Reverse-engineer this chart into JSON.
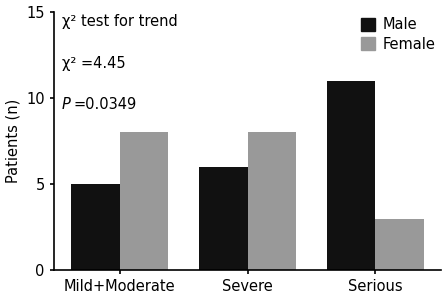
{
  "categories": [
    "Mild+Moderate",
    "Severe",
    "Serious"
  ],
  "male_values": [
    5,
    6,
    11
  ],
  "female_values": [
    8,
    8,
    3
  ],
  "male_color": "#111111",
  "female_color": "#999999",
  "ylabel": "Patients (n)",
  "ylim": [
    0,
    15
  ],
  "yticks": [
    0,
    5,
    10,
    15
  ],
  "annotation_line1": "χ² test for trend",
  "annotation_line2": "χ² =4.45",
  "annotation_line3_p": "P",
  "annotation_line3_rest": "=0.0349",
  "legend_male": "Male",
  "legend_female": "Female",
  "bar_width": 0.38,
  "font_size": 10.5,
  "figsize": [
    4.47,
    3.0
  ],
  "dpi": 100
}
